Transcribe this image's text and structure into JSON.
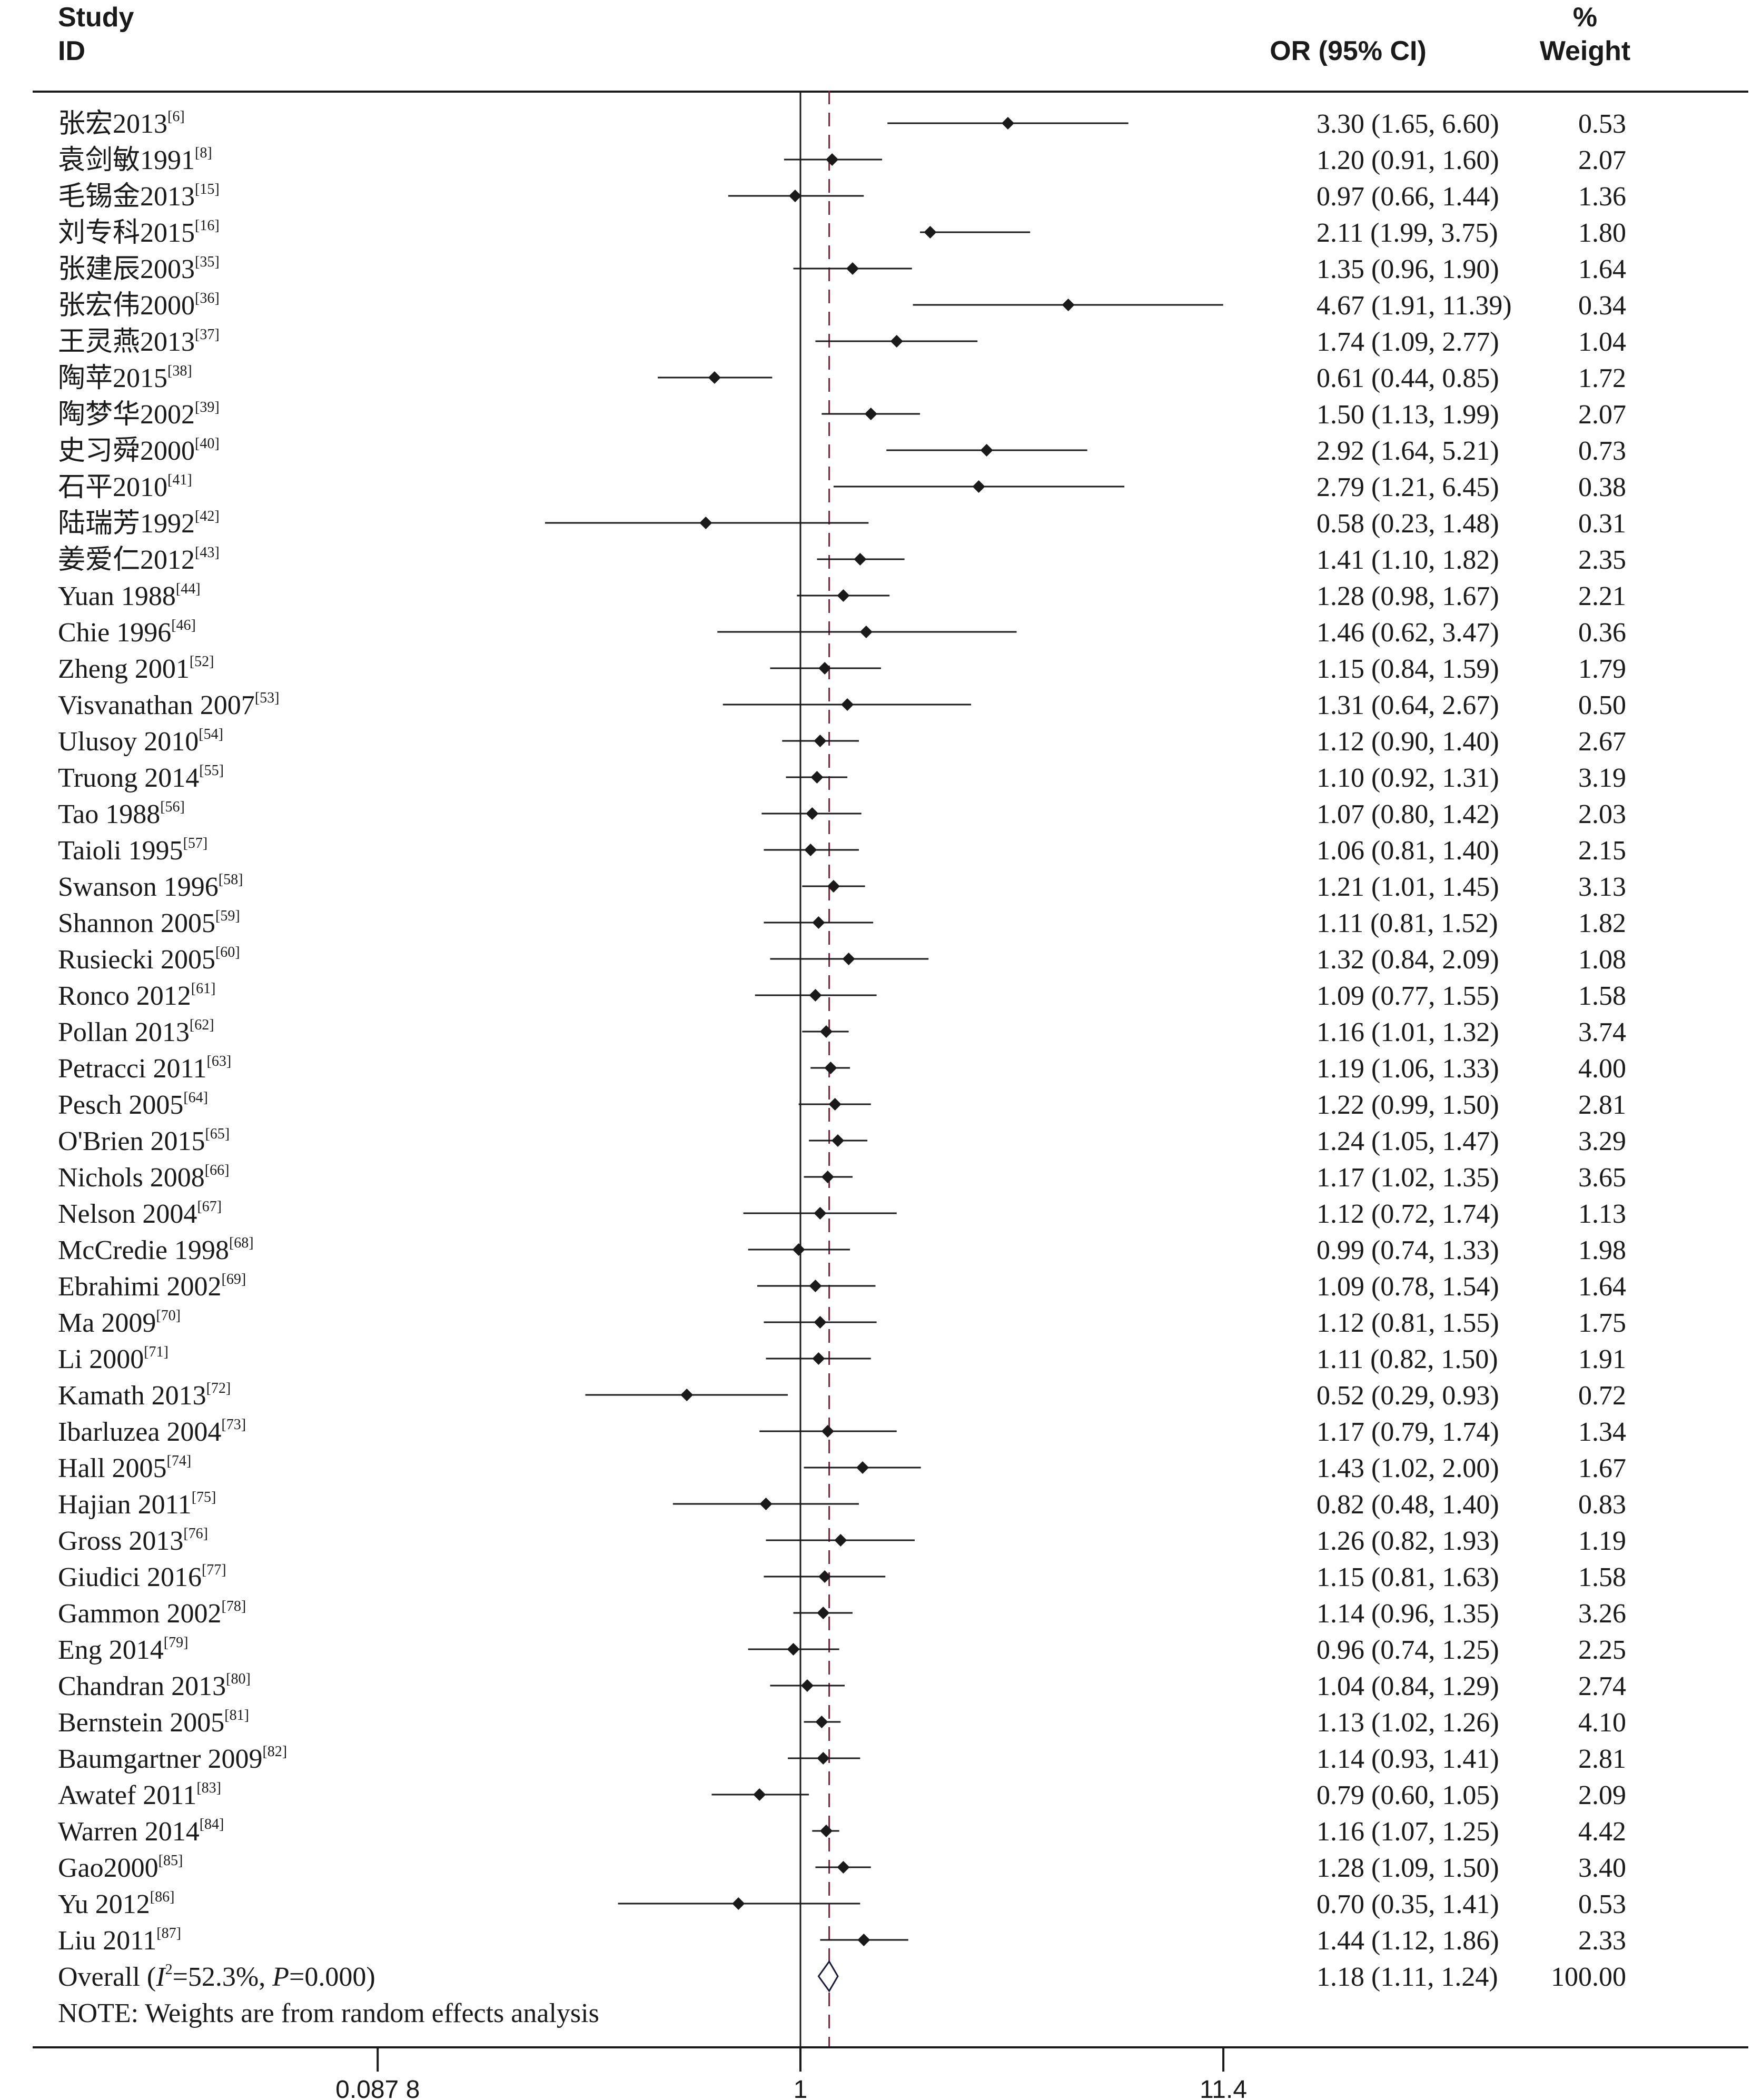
{
  "header": {
    "study_label": "Study",
    "id_label": "ID",
    "or_label": "OR (95% CI)",
    "pct_label": "%",
    "weight_label": "Weight"
  },
  "chart_data": {
    "type": "forest",
    "x_scale": "log",
    "xlim": [
      0.0878,
      11.4
    ],
    "xticks": [
      {
        "value": 0.0878,
        "label": "0.087 8"
      },
      {
        "value": 1,
        "label": "1"
      },
      {
        "value": 11.4,
        "label": "11.4"
      }
    ],
    "reference_line": 1,
    "pooled_line": 1.18,
    "studies": [
      {
        "name": "张宏2013",
        "ref": "[6]",
        "or": 3.3,
        "lo": 1.65,
        "hi": 6.6,
        "ci_text": "3.30 (1.65, 6.60)",
        "weight": "0.53"
      },
      {
        "name": "袁剑敏1991",
        "ref": "[8]",
        "or": 1.2,
        "lo": 0.91,
        "hi": 1.6,
        "ci_text": "1.20 (0.91, 1.60)",
        "weight": "2.07"
      },
      {
        "name": "毛锡金2013",
        "ref": "[15]",
        "or": 0.97,
        "lo": 0.66,
        "hi": 1.44,
        "ci_text": "0.97 (0.66, 1.44)",
        "weight": "1.36"
      },
      {
        "name": "刘专科2015",
        "ref": "[16]",
        "or": 2.11,
        "lo": 1.99,
        "hi": 3.75,
        "ci_text": "2.11 (1.99, 3.75)",
        "weight": "1.80"
      },
      {
        "name": "张建辰2003",
        "ref": "[35]",
        "or": 1.35,
        "lo": 0.96,
        "hi": 1.9,
        "ci_text": "1.35 (0.96, 1.90)",
        "weight": "1.64"
      },
      {
        "name": "张宏伟2000",
        "ref": "[36]",
        "or": 4.67,
        "lo": 1.91,
        "hi": 11.39,
        "ci_text": "4.67 (1.91, 11.39)",
        "weight": "0.34"
      },
      {
        "name": "王灵燕2013",
        "ref": "[37]",
        "or": 1.74,
        "lo": 1.09,
        "hi": 2.77,
        "ci_text": "1.74 (1.09, 2.77)",
        "weight": "1.04"
      },
      {
        "name": "陶苹2015",
        "ref": "[38]",
        "or": 0.61,
        "lo": 0.44,
        "hi": 0.85,
        "ci_text": "0.61 (0.44, 0.85)",
        "weight": "1.72"
      },
      {
        "name": "陶梦华2002",
        "ref": "[39]",
        "or": 1.5,
        "lo": 1.13,
        "hi": 1.99,
        "ci_text": "1.50 (1.13, 1.99)",
        "weight": "2.07"
      },
      {
        "name": "史习舜2000",
        "ref": "[40]",
        "or": 2.92,
        "lo": 1.64,
        "hi": 5.21,
        "ci_text": "2.92 (1.64, 5.21)",
        "weight": "0.73"
      },
      {
        "name": "石平2010",
        "ref": "[41]",
        "or": 2.79,
        "lo": 1.21,
        "hi": 6.45,
        "ci_text": "2.79 (1.21, 6.45)",
        "weight": "0.38"
      },
      {
        "name": "陆瑞芳1992",
        "ref": "[42]",
        "or": 0.58,
        "lo": 0.23,
        "hi": 1.48,
        "ci_text": "0.58 (0.23, 1.48)",
        "weight": "0.31"
      },
      {
        "name": "姜爱仁2012",
        "ref": "[43]",
        "or": 1.41,
        "lo": 1.1,
        "hi": 1.82,
        "ci_text": "1.41 (1.10, 1.82)",
        "weight": "2.35"
      },
      {
        "name": "Yuan 1988",
        "ref": "[44]",
        "or": 1.28,
        "lo": 0.98,
        "hi": 1.67,
        "ci_text": "1.28 (0.98, 1.67)",
        "weight": "2.21"
      },
      {
        "name": "Chie 1996",
        "ref": "[46]",
        "or": 1.46,
        "lo": 0.62,
        "hi": 3.47,
        "ci_text": "1.46 (0.62, 3.47)",
        "weight": "0.36"
      },
      {
        "name": "Zheng 2001",
        "ref": "[52]",
        "or": 1.15,
        "lo": 0.84,
        "hi": 1.59,
        "ci_text": "1.15 (0.84, 1.59)",
        "weight": "1.79"
      },
      {
        "name": "Visvanathan 2007",
        "ref": "[53]",
        "or": 1.31,
        "lo": 0.64,
        "hi": 2.67,
        "ci_text": "1.31 (0.64, 2.67)",
        "weight": "0.50"
      },
      {
        "name": "Ulusoy 2010",
        "ref": "[54]",
        "or": 1.12,
        "lo": 0.9,
        "hi": 1.4,
        "ci_text": "1.12 (0.90, 1.40)",
        "weight": "2.67"
      },
      {
        "name": "Truong 2014",
        "ref": "[55]",
        "or": 1.1,
        "lo": 0.92,
        "hi": 1.31,
        "ci_text": "1.10 (0.92, 1.31)",
        "weight": "3.19"
      },
      {
        "name": "Tao 1988",
        "ref": "[56]",
        "or": 1.07,
        "lo": 0.8,
        "hi": 1.42,
        "ci_text": "1.07 (0.80, 1.42)",
        "weight": "2.03"
      },
      {
        "name": "Taioli 1995",
        "ref": "[57]",
        "or": 1.06,
        "lo": 0.81,
        "hi": 1.4,
        "ci_text": "1.06 (0.81, 1.40)",
        "weight": "2.15"
      },
      {
        "name": "Swanson 1996",
        "ref": "[58]",
        "or": 1.21,
        "lo": 1.01,
        "hi": 1.45,
        "ci_text": "1.21 (1.01, 1.45)",
        "weight": "3.13"
      },
      {
        "name": "Shannon 2005",
        "ref": "[59]",
        "or": 1.11,
        "lo": 0.81,
        "hi": 1.52,
        "ci_text": "1.11 (0.81, 1.52)",
        "weight": "1.82"
      },
      {
        "name": "Rusiecki 2005",
        "ref": "[60]",
        "or": 1.32,
        "lo": 0.84,
        "hi": 2.09,
        "ci_text": "1.32 (0.84, 2.09)",
        "weight": "1.08"
      },
      {
        "name": "Ronco 2012",
        "ref": "[61]",
        "or": 1.09,
        "lo": 0.77,
        "hi": 1.55,
        "ci_text": "1.09 (0.77, 1.55)",
        "weight": "1.58"
      },
      {
        "name": "Pollan 2013",
        "ref": "[62]",
        "or": 1.16,
        "lo": 1.01,
        "hi": 1.32,
        "ci_text": "1.16 (1.01, 1.32)",
        "weight": "3.74"
      },
      {
        "name": "Petracci 2011",
        "ref": "[63]",
        "or": 1.19,
        "lo": 1.06,
        "hi": 1.33,
        "ci_text": "1.19 (1.06, 1.33)",
        "weight": "4.00"
      },
      {
        "name": "Pesch 2005",
        "ref": "[64]",
        "or": 1.22,
        "lo": 0.99,
        "hi": 1.5,
        "ci_text": "1.22 (0.99, 1.50)",
        "weight": "2.81"
      },
      {
        "name": "O'Brien 2015",
        "ref": "[65]",
        "or": 1.24,
        "lo": 1.05,
        "hi": 1.47,
        "ci_text": "1.24 (1.05, 1.47)",
        "weight": "3.29"
      },
      {
        "name": "Nichols 2008",
        "ref": "[66]",
        "or": 1.17,
        "lo": 1.02,
        "hi": 1.35,
        "ci_text": "1.17 (1.02, 1.35)",
        "weight": "3.65"
      },
      {
        "name": "Nelson 2004",
        "ref": "[67]",
        "or": 1.12,
        "lo": 0.72,
        "hi": 1.74,
        "ci_text": "1.12 (0.72, 1.74)",
        "weight": "1.13"
      },
      {
        "name": "McCredie 1998",
        "ref": "[68]",
        "or": 0.99,
        "lo": 0.74,
        "hi": 1.33,
        "ci_text": "0.99 (0.74, 1.33)",
        "weight": "1.98"
      },
      {
        "name": "Ebrahimi 2002",
        "ref": "[69]",
        "or": 1.09,
        "lo": 0.78,
        "hi": 1.54,
        "ci_text": "1.09 (0.78, 1.54)",
        "weight": "1.64"
      },
      {
        "name": "Ma 2009",
        "ref": "[70]",
        "or": 1.12,
        "lo": 0.81,
        "hi": 1.55,
        "ci_text": "1.12 (0.81, 1.55)",
        "weight": "1.75"
      },
      {
        "name": "Li 2000",
        "ref": "[71]",
        "or": 1.11,
        "lo": 0.82,
        "hi": 1.5,
        "ci_text": "1.11 (0.82, 1.50)",
        "weight": "1.91"
      },
      {
        "name": "Kamath 2013",
        "ref": "[72]",
        "or": 0.52,
        "lo": 0.29,
        "hi": 0.93,
        "ci_text": "0.52 (0.29, 0.93)",
        "weight": "0.72"
      },
      {
        "name": "Ibarluzea 2004",
        "ref": "[73]",
        "or": 1.17,
        "lo": 0.79,
        "hi": 1.74,
        "ci_text": "1.17 (0.79, 1.74)",
        "weight": "1.34"
      },
      {
        "name": "Hall 2005",
        "ref": "[74]",
        "or": 1.43,
        "lo": 1.02,
        "hi": 2.0,
        "ci_text": "1.43 (1.02, 2.00)",
        "weight": "1.67"
      },
      {
        "name": "Hajian 2011",
        "ref": "[75]",
        "or": 0.82,
        "lo": 0.48,
        "hi": 1.4,
        "ci_text": "0.82 (0.48, 1.40)",
        "weight": "0.83"
      },
      {
        "name": "Gross 2013",
        "ref": "[76]",
        "or": 1.26,
        "lo": 0.82,
        "hi": 1.93,
        "ci_text": "1.26 (0.82, 1.93)",
        "weight": "1.19"
      },
      {
        "name": "Giudici 2016",
        "ref": "[77]",
        "or": 1.15,
        "lo": 0.81,
        "hi": 1.63,
        "ci_text": "1.15 (0.81, 1.63)",
        "weight": "1.58"
      },
      {
        "name": "Gammon 2002",
        "ref": "[78]",
        "or": 1.14,
        "lo": 0.96,
        "hi": 1.35,
        "ci_text": "1.14 (0.96, 1.35)",
        "weight": "3.26"
      },
      {
        "name": "Eng 2014",
        "ref": "[79]",
        "or": 0.96,
        "lo": 0.74,
        "hi": 1.25,
        "ci_text": "0.96 (0.74, 1.25)",
        "weight": "2.25"
      },
      {
        "name": "Chandran 2013",
        "ref": "[80]",
        "or": 1.04,
        "lo": 0.84,
        "hi": 1.29,
        "ci_text": "1.04 (0.84, 1.29)",
        "weight": "2.74"
      },
      {
        "name": "Bernstein 2005",
        "ref": "[81]",
        "or": 1.13,
        "lo": 1.02,
        "hi": 1.26,
        "ci_text": "1.13 (1.02, 1.26)",
        "weight": "4.10"
      },
      {
        "name": "Baumgartner 2009",
        "ref": "[82]",
        "or": 1.14,
        "lo": 0.93,
        "hi": 1.41,
        "ci_text": "1.14 (0.93, 1.41)",
        "weight": "2.81"
      },
      {
        "name": "Awatef 2011",
        "ref": "[83]",
        "or": 0.79,
        "lo": 0.6,
        "hi": 1.05,
        "ci_text": "0.79 (0.60, 1.05)",
        "weight": "2.09"
      },
      {
        "name": "Warren 2014",
        "ref": "[84]",
        "or": 1.16,
        "lo": 1.07,
        "hi": 1.25,
        "ci_text": "1.16 (1.07, 1.25)",
        "weight": "4.42"
      },
      {
        "name": "Gao2000",
        "ref": "[85]",
        "or": 1.28,
        "lo": 1.09,
        "hi": 1.5,
        "ci_text": "1.28 (1.09, 1.50)",
        "weight": "3.40"
      },
      {
        "name": "Yu 2012",
        "ref": "[86]",
        "or": 0.7,
        "lo": 0.35,
        "hi": 1.41,
        "ci_text": "0.70 (0.35, 1.41)",
        "weight": "0.53"
      },
      {
        "name": "Liu 2011",
        "ref": "[87]",
        "or": 1.44,
        "lo": 1.12,
        "hi": 1.86,
        "ci_text": "1.44 (1.12, 1.86)",
        "weight": "2.33"
      }
    ],
    "overall": {
      "label_prefix": "Overall (",
      "i_symbol": "I",
      "i_sup": "2",
      "i_value": "=52.3%, ",
      "p_symbol": "P",
      "p_value": "=0.000)",
      "or": 1.18,
      "lo": 1.11,
      "hi": 1.24,
      "ci_text": "1.18 (1.11, 1.24)",
      "weight": "100.00"
    },
    "note": "NOTE: Weights are from random effects analysis",
    "colors": {
      "ink": "#1a1a1a",
      "pooled_line": "#8b1a3a"
    }
  }
}
